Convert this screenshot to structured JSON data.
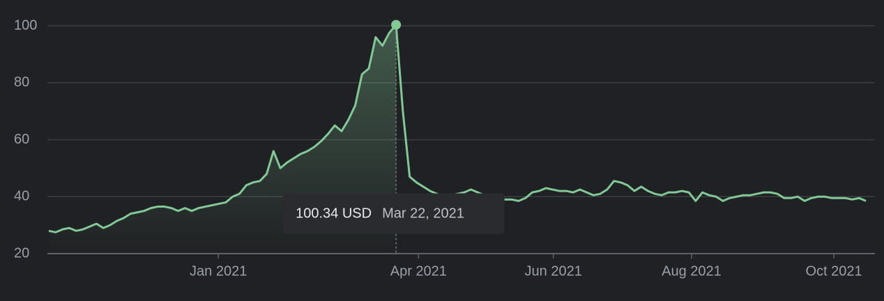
{
  "chart_data": {
    "type": "line",
    "values": [
      28,
      27.5,
      28.5,
      29,
      28,
      28.5,
      29.5,
      30.5,
      29,
      30,
      31.5,
      32.5,
      34,
      34.5,
      35,
      36,
      36.5,
      36.5,
      36,
      35,
      36,
      35,
      36,
      36.5,
      37,
      37.5,
      38,
      40,
      41,
      44,
      45,
      45.5,
      48,
      56,
      50,
      52,
      53.5,
      55,
      56,
      57.5,
      59.5,
      62,
      65,
      63,
      67,
      72,
      83,
      85,
      96,
      93,
      97.5,
      100.34,
      70,
      47,
      45,
      43.5,
      42,
      41,
      40,
      40.5,
      41,
      41.5,
      42.5,
      41.5,
      40.5,
      40,
      39.5,
      39,
      39,
      38.5,
      39.5,
      41.5,
      42,
      43,
      42.5,
      42,
      42,
      41.5,
      42.5,
      41.5,
      40.5,
      41,
      42.5,
      45.5,
      45,
      44,
      42,
      43.5,
      42,
      41,
      40.5,
      41.5,
      41.5,
      42,
      41.5,
      38.5,
      41.5,
      40.5,
      40,
      38.5,
      39.5,
      40,
      40.5,
      40.5,
      41,
      41.5,
      41.5,
      41,
      39.5,
      39.5,
      40,
      38.5,
      39.5,
      40,
      40,
      39.5,
      39.5,
      39.5,
      39,
      39.5,
      38.5
    ],
    "color": "#81c995",
    "xlim": [
      0,
      120
    ],
    "xticks": [
      {
        "value": 24.9,
        "label": "Jan 2021"
      },
      {
        "value": 54.3,
        "label": "Apr 2021"
      },
      {
        "value": 74.1,
        "label": "Jun 2021"
      },
      {
        "value": 94.4,
        "label": "Aug 2021"
      },
      {
        "value": 115.3,
        "label": "Oct 2021"
      }
    ],
    "ylim": [
      20,
      100
    ],
    "yticks": [
      20,
      40,
      60,
      80,
      100
    ],
    "grid": true,
    "tooltip": {
      "value": 100.34,
      "label": "100.34 USD",
      "date": "Mar 22, 2021"
    }
  }
}
